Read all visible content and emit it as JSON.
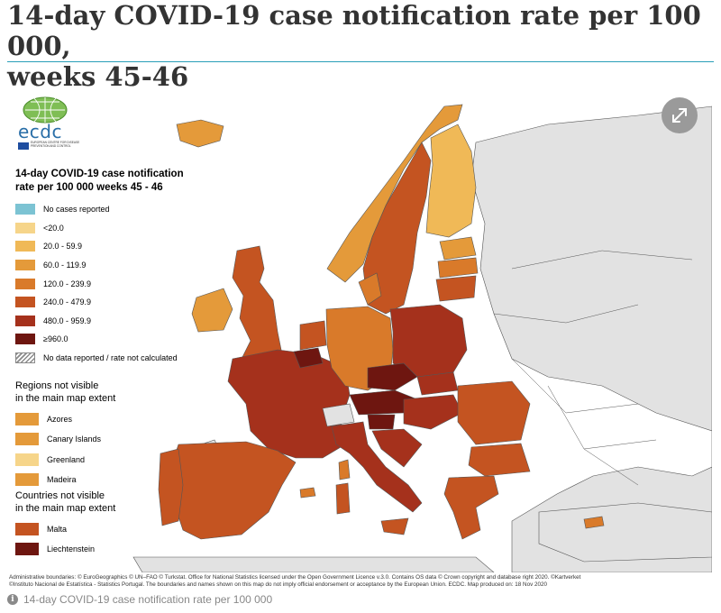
{
  "page": {
    "title_line1": "14-day COVID-19 case notification rate per 100 000,",
    "title_line2": "weeks 45-46",
    "caption": "14-day COVID-19 case notification rate per 100 000"
  },
  "map": {
    "logo_text": "ecdc",
    "logo_subtext": "EUROPEAN CENTRE FOR DISEASE PREVENTION AND CONTROL",
    "legend_title_line1": "14-day COVID-19 case notification",
    "legend_title_line2": "rate per 100 000 weeks 45 - 46",
    "legend_items": [
      {
        "label": "No cases reported",
        "color": "#7cc3d3"
      },
      {
        "label": "<20.0",
        "color": "#f6d58a"
      },
      {
        "label": "20.0 - 59.9",
        "color": "#f0b957"
      },
      {
        "label": "60.0 - 119.9",
        "color": "#e49a3a"
      },
      {
        "label": "120.0 - 239.9",
        "color": "#d97a2a"
      },
      {
        "label": "240.0 - 479.9",
        "color": "#c45421"
      },
      {
        "label": "480.0 - 959.9",
        "color": "#a5311c"
      },
      {
        "label": "≥960.0",
        "color": "#6e1610"
      },
      {
        "label": "No data reported / rate not calculated",
        "color": "hatch"
      }
    ],
    "regions_heading_line1": "Regions not visible",
    "regions_heading_line2": "in the main map extent",
    "regions": [
      {
        "label": "Azores",
        "color": "#e49a3a"
      },
      {
        "label": "Canary Islands",
        "color": "#e49a3a"
      },
      {
        "label": "Greenland",
        "color": "#f6d58a"
      },
      {
        "label": "Madeira",
        "color": "#e49a3a"
      }
    ],
    "countries_heading_line1": "Countries not visible",
    "countries_heading_line2": "in the main map extent",
    "countries": [
      {
        "label": "Malta",
        "color": "#c45421"
      },
      {
        "label": "Liechtenstein",
        "color": "#6e1610"
      }
    ],
    "credits_line1": "Administrative boundaries: © EuroGeographics © UN–FAO © Turkstat. Office for National Statistics licensed under the Open Government Licence v.3.0. Contains OS data © Crown copyright and database right 2020. ©Kartverket",
    "credits_line2": "©Instituto Nacional de Estatística - Statistics Portugal. The boundaries and names shown on this map do not imply official endorsement or acceptance by the European Union. ECDC. Map produced on: 18 Nov 2020"
  },
  "colors": {
    "title_rule": "#2a9fb8",
    "non_eu_land": "#e2e2e2",
    "sea": "#ffffff"
  },
  "icons": {
    "expand": "expand-arrows-icon",
    "info": "info-icon",
    "logo_globe": "ecdc-globe-icon",
    "eu_flag": "eu-flag-icon"
  }
}
